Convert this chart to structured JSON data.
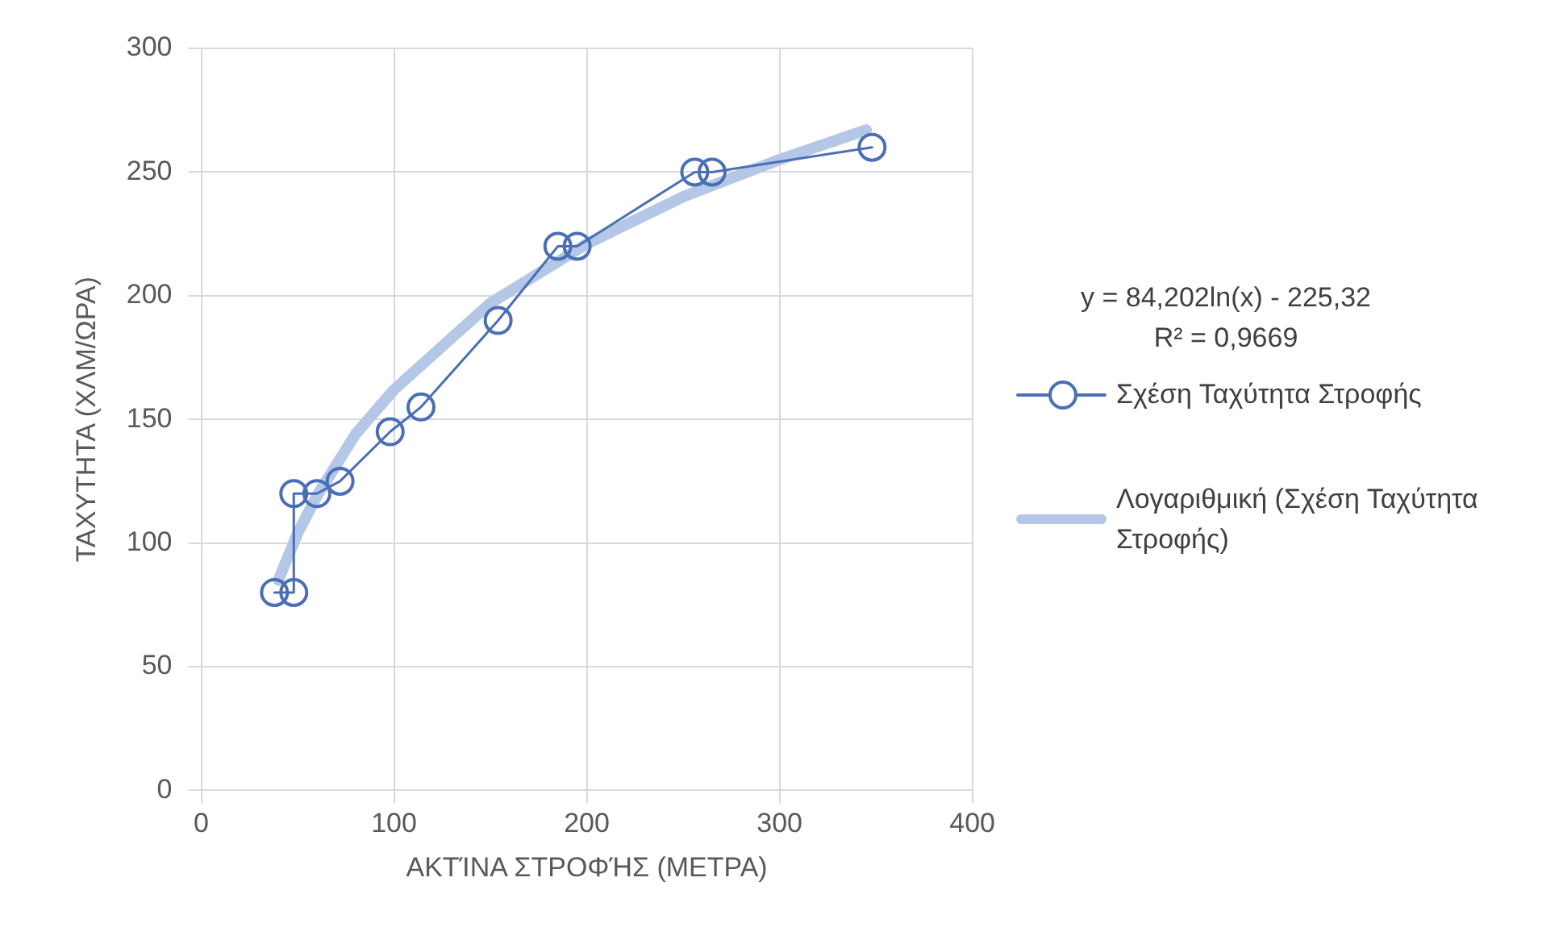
{
  "chart_data": {
    "type": "line",
    "xlabel": "ΑΚΤΊΝΑ ΣΤΡΟΦΉΣ (ΜΕΤΡΑ)",
    "ylabel": "ΤΑΧΥΤΗΤΑ (ΧΛΜ/ΩΡΑ)",
    "xlim": [
      0,
      400
    ],
    "xticks": [
      0,
      100,
      200,
      300,
      400
    ],
    "ylim": [
      0,
      300
    ],
    "yticks": [
      0,
      50,
      100,
      150,
      200,
      250,
      300
    ],
    "grid": true,
    "legend": "right",
    "marker": "circle",
    "annotations": [
      "y = 84,202ln(x) - 225,32",
      "R² = 0,9669"
    ],
    "series": [
      {
        "name": "Σχέση Ταχύτητα Στροφής",
        "color": "#4a6fb5",
        "x": [
          38,
          48,
          48,
          60,
          72,
          98,
          114,
          154,
          185,
          195,
          256,
          265,
          348
        ],
        "values": [
          80,
          80,
          120,
          120,
          125,
          145,
          155,
          190,
          220,
          220,
          250,
          250,
          260
        ]
      },
      {
        "name": "Λογαριθμική (Σχέση Ταχύτητα Στροφής)",
        "marker": "none",
        "color": "#b4c7e7",
        "x": [
          40,
          50,
          60,
          80,
          100,
          150,
          200,
          250,
          300,
          345
        ],
        "values": [
          85,
          104,
          119,
          144,
          162,
          197,
          221,
          240,
          255,
          267
        ]
      }
    ]
  }
}
